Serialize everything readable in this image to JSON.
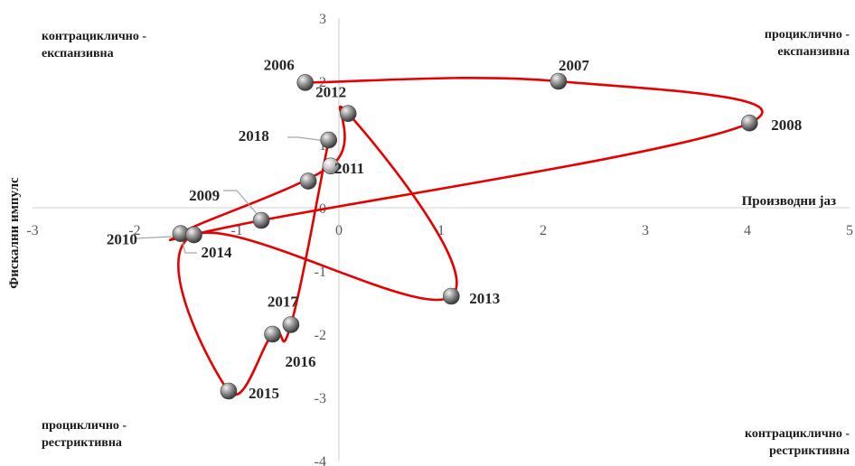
{
  "chart_data": {
    "type": "scatter",
    "xlabel": "Производни јаз",
    "ylabel": "Фискални импулс",
    "xlim": [
      -3,
      5
    ],
    "ylim": [
      -4,
      3
    ],
    "xticks": [
      "-3",
      "-2",
      "-1",
      "0",
      "1",
      "2",
      "3",
      "4",
      "5"
    ],
    "yticks": [
      "-4",
      "-3",
      "-2",
      "-1",
      "0",
      "1",
      "2",
      "3"
    ],
    "quadrant_labels": {
      "top_left": [
        "контрациклично -",
        "експанзивна"
      ],
      "top_right": [
        "процик­лично -",
        "експанзивна"
      ],
      "bottom_left": [
        "процик­лично -",
        "рестриктивна"
      ],
      "bottom_right": [
        "контрациклично -",
        "рестриктивна"
      ]
    },
    "grid": false,
    "connected_line": true,
    "colors": {
      "line": "#e60000",
      "marker": "#7f7f7f",
      "axis": "#d9d9d9"
    },
    "points": [
      {
        "label": "2006",
        "x": -0.33,
        "y": 1.98
      },
      {
        "label": "2007",
        "x": 2.15,
        "y": 2.0
      },
      {
        "label": "2008",
        "x": 4.02,
        "y": 1.34
      },
      {
        "label": "2009",
        "x": -0.76,
        "y": -0.2
      },
      {
        "label": "2010",
        "x": -1.55,
        "y": -0.41
      },
      {
        "label": "2011",
        "x": -0.08,
        "y": 0.66
      },
      {
        "label": "2012",
        "x": 0.09,
        "y": 1.49
      },
      {
        "label": "2013",
        "x": 1.1,
        "y": -1.4
      },
      {
        "label": "2014",
        "x": -1.42,
        "y": -0.43
      },
      {
        "label": "2015",
        "x": -1.08,
        "y": -2.9
      },
      {
        "label": "2016",
        "x": -0.65,
        "y": -2.0
      },
      {
        "label": "2017",
        "x": -0.47,
        "y": -1.85
      },
      {
        "label": "2018",
        "x": -0.1,
        "y": 1.07
      }
    ],
    "extra_points": [
      {
        "x": -0.3,
        "y": 0.42
      }
    ]
  }
}
